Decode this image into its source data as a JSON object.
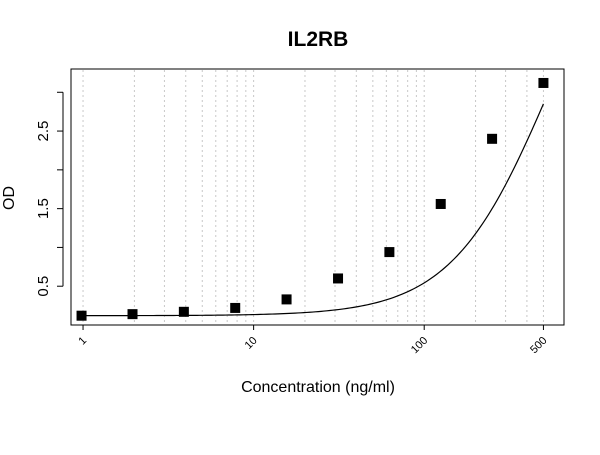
{
  "chart_data": {
    "type": "scatter",
    "title": "IL2RB",
    "xlabel": "Concentration (ng/ml)",
    "ylabel": "OD",
    "x_scale": "log",
    "xlim": [
      0.85,
      660
    ],
    "ylim": [
      0.0,
      3.3
    ],
    "x_ticks": [
      {
        "value": 1,
        "label": "1"
      },
      {
        "value": 10,
        "label": "10"
      },
      {
        "value": 100,
        "label": "100"
      },
      {
        "value": 500,
        "label": "500"
      }
    ],
    "y_ticks": [
      {
        "value": 0.5,
        "label": "0.5"
      },
      {
        "value": 1.0,
        "label": ""
      },
      {
        "value": 1.5,
        "label": "1.5"
      },
      {
        "value": 2.0,
        "label": ""
      },
      {
        "value": 2.5,
        "label": "2.5"
      },
      {
        "value": 3.0,
        "label": ""
      }
    ],
    "grid": {
      "vertical": true,
      "horizontal": false,
      "style": "dotted",
      "x_grid_values": [
        1,
        2,
        3,
        4,
        5,
        6,
        7,
        8,
        9,
        10,
        20,
        30,
        40,
        50,
        60,
        70,
        80,
        90,
        100,
        200,
        300,
        400,
        500
      ]
    },
    "series": [
      {
        "marker": "square",
        "x": [
          0.98,
          1.95,
          3.9,
          7.8,
          15.6,
          31.25,
          62.5,
          125,
          250,
          500
        ],
        "y": [
          0.12,
          0.14,
          0.17,
          0.22,
          0.33,
          0.6,
          0.94,
          1.56,
          2.4,
          3.12
        ]
      }
    ],
    "fit_curve": {
      "type": "4PL",
      "A": 0.12,
      "B": 1.5,
      "C": 550,
      "D": 6.0,
      "x_range": [
        0.98,
        500
      ]
    }
  }
}
